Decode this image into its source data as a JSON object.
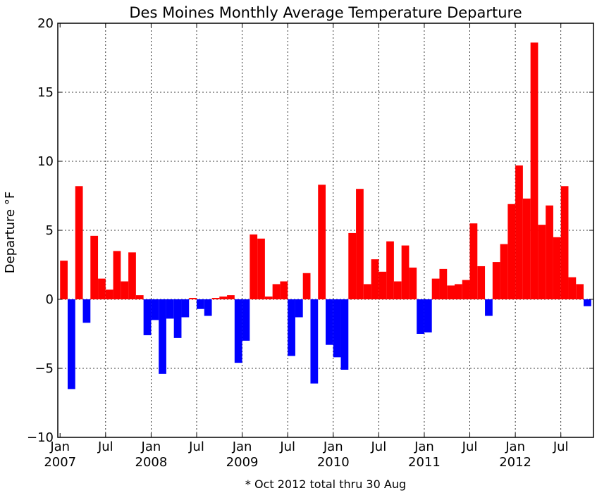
{
  "chart_data": {
    "type": "bar",
    "title": "Des Moines Monthly Average Temperature Departure",
    "xlabel": "",
    "ylabel": "Departure °F",
    "ylim": [
      -10,
      20
    ],
    "yticks": [
      -10,
      -5,
      0,
      5,
      10,
      15,
      20
    ],
    "ytick_labels": [
      "−10",
      "−5",
      "0",
      "5",
      "10",
      "15",
      "20"
    ],
    "grid": true,
    "xlim": [
      -0.3,
      70.3
    ],
    "xtick_labels": [
      {
        "month": 0,
        "label": "Jan\n2007"
      },
      {
        "month": 6,
        "label": "Jul"
      },
      {
        "month": 12,
        "label": "Jan\n2008"
      },
      {
        "month": 18,
        "label": "Jul"
      },
      {
        "month": 24,
        "label": "Jan\n2009"
      },
      {
        "month": 30,
        "label": "Jul"
      },
      {
        "month": 36,
        "label": "Jan\n2010"
      },
      {
        "month": 42,
        "label": "Jul"
      },
      {
        "month": 48,
        "label": "Jan\n2011"
      },
      {
        "month": 54,
        "label": "Jul"
      },
      {
        "month": 60,
        "label": "Jan\n2012"
      },
      {
        "month": 66,
        "label": "Jul"
      }
    ],
    "colors": {
      "positive": "#ff0000",
      "negative": "#0000ff"
    },
    "series": [
      {
        "start": "2007-01",
        "end": "2012-10",
        "values": [
          2.8,
          -6.5,
          8.2,
          -1.7,
          4.6,
          1.5,
          0.7,
          3.5,
          1.3,
          3.4,
          0.3,
          -2.6,
          -1.5,
          -5.4,
          -1.4,
          -2.8,
          -1.3,
          0.1,
          -0.7,
          -1.2,
          0.1,
          0.2,
          0.3,
          -4.6,
          -3.0,
          4.7,
          4.4,
          0.2,
          1.1,
          1.3,
          -4.1,
          -1.3,
          1.9,
          -6.1,
          8.3,
          -3.3,
          -4.2,
          -5.1,
          4.8,
          8.0,
          1.1,
          2.9,
          2.0,
          4.2,
          1.3,
          3.9,
          2.3,
          -2.5,
          -2.4,
          1.5,
          2.2,
          1.0,
          1.1,
          1.4,
          5.5,
          2.4,
          -1.2,
          2.7,
          4.0,
          6.9,
          9.7,
          7.3,
          18.6,
          5.4,
          6.8,
          4.5,
          8.2,
          1.6,
          1.1,
          -0.5
        ]
      }
    ],
    "annotation": "* Oct 2012 total thru 30 Aug"
  }
}
